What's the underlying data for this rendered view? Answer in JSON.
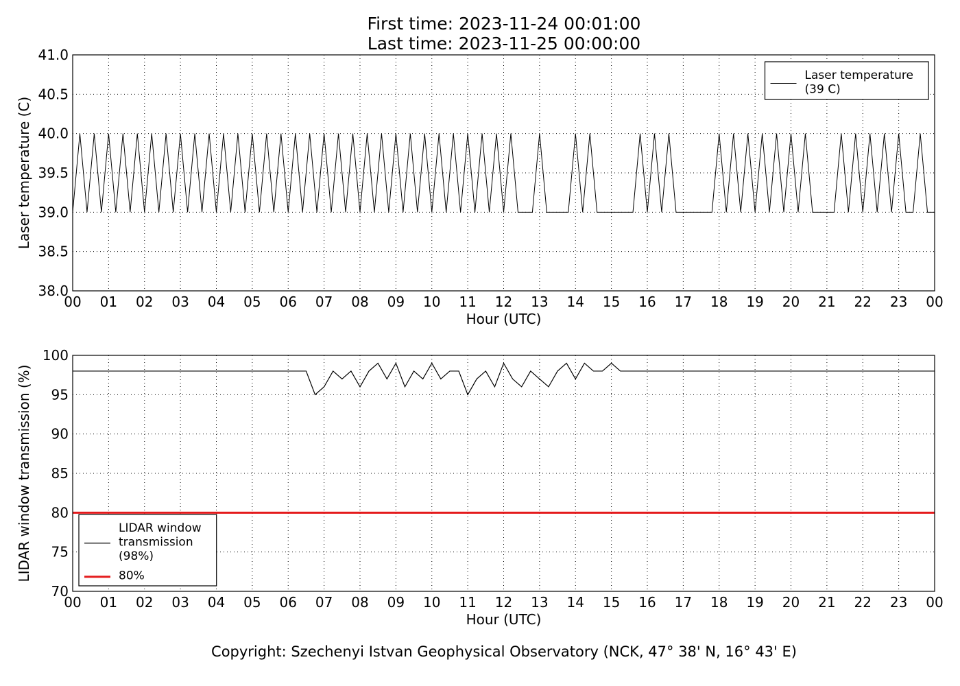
{
  "title": [
    "First time: 2023-11-24 00:01:00",
    "Last time: 2023-11-25 00:00:00"
  ],
  "footer": "Copyright: Szechenyi Istvan Geophysical Observatory (NCK, 47° 38' N, 16° 43' E)",
  "chart_data": [
    {
      "type": "line",
      "xlabel": "Hour (UTC)",
      "ylabel": "Laser temperature (C)",
      "xlim": [
        0,
        24
      ],
      "ylim": [
        38,
        41
      ],
      "grid": true,
      "legend": "upper right",
      "xticks": [
        {
          "value": 0,
          "label": "00"
        },
        {
          "value": 1,
          "label": "01"
        },
        {
          "value": 2,
          "label": "02"
        },
        {
          "value": 3,
          "label": "03"
        },
        {
          "value": 4,
          "label": "04"
        },
        {
          "value": 5,
          "label": "05"
        },
        {
          "value": 6,
          "label": "06"
        },
        {
          "value": 7,
          "label": "07"
        },
        {
          "value": 8,
          "label": "08"
        },
        {
          "value": 9,
          "label": "09"
        },
        {
          "value": 10,
          "label": "10"
        },
        {
          "value": 11,
          "label": "11"
        },
        {
          "value": 12,
          "label": "12"
        },
        {
          "value": 13,
          "label": "13"
        },
        {
          "value": 14,
          "label": "14"
        },
        {
          "value": 15,
          "label": "15"
        },
        {
          "value": 16,
          "label": "16"
        },
        {
          "value": 17,
          "label": "17"
        },
        {
          "value": 18,
          "label": "18"
        },
        {
          "value": 19,
          "label": "19"
        },
        {
          "value": 20,
          "label": "20"
        },
        {
          "value": 21,
          "label": "21"
        },
        {
          "value": 22,
          "label": "22"
        },
        {
          "value": 23,
          "label": "23"
        },
        {
          "value": 24,
          "label": "00"
        }
      ],
      "yticks": [
        {
          "value": 38,
          "label": "38.0"
        },
        38.5,
        {
          "value": 39,
          "label": "39.0"
        },
        39.5,
        {
          "value": 40,
          "label": "40.0"
        },
        40.5,
        {
          "value": 41,
          "label": "41.0"
        }
      ],
      "series": [
        {
          "name": "Laser temperature\n(39 C)",
          "color": "#000000",
          "x": [
            0,
            0.2,
            0.4,
            0.6,
            0.8,
            1,
            1.2,
            1.4,
            1.6,
            1.8,
            2,
            2.2,
            2.4,
            2.6,
            2.8,
            3,
            3.2,
            3.4,
            3.6,
            3.8,
            4,
            4.2,
            4.4,
            4.6,
            4.8,
            5,
            5.2,
            5.4,
            5.6,
            5.8,
            6,
            6.2,
            6.4,
            6.6,
            6.8,
            7,
            7.2,
            7.4,
            7.6,
            7.8,
            8,
            8.2,
            8.4,
            8.6,
            8.8,
            9,
            9.2,
            9.4,
            9.6,
            9.8,
            10,
            10.2,
            10.4,
            10.6,
            10.8,
            11,
            11.2,
            11.4,
            11.6,
            11.8,
            12,
            12.2,
            12.4,
            12.6,
            12.8,
            13,
            13.2,
            13.4,
            13.6,
            13.8,
            14,
            14.2,
            14.4,
            14.6,
            14.8,
            15,
            15.2,
            15.4,
            15.6,
            15.8,
            16,
            16.2,
            16.4,
            16.6,
            16.8,
            17,
            17.2,
            17.4,
            17.6,
            17.8,
            18,
            18.2,
            18.4,
            18.6,
            18.8,
            19,
            19.2,
            19.4,
            19.6,
            19.8,
            20,
            20.2,
            20.4,
            20.6,
            20.8,
            21,
            21.2,
            21.4,
            21.6,
            21.8,
            22,
            22.2,
            22.4,
            22.6,
            22.8,
            23,
            23.2,
            23.4,
            23.6,
            23.8,
            24
          ],
          "values": [
            39,
            40,
            39,
            40,
            39,
            40,
            39,
            40,
            39,
            40,
            39,
            40,
            39,
            40,
            39,
            40,
            39,
            40,
            39,
            40,
            39,
            40,
            39,
            40,
            39,
            40,
            39,
            40,
            39,
            40,
            39,
            40,
            39,
            40,
            39,
            40,
            39,
            40,
            39,
            40,
            39,
            40,
            39,
            40,
            39,
            40,
            39,
            40,
            39,
            40,
            39,
            40,
            39,
            40,
            39,
            40,
            39,
            40,
            39,
            40,
            39,
            40,
            39,
            39,
            39,
            40,
            39,
            39,
            39,
            39,
            40,
            39,
            40,
            39,
            39,
            39,
            39,
            39,
            39,
            40,
            39,
            40,
            39,
            40,
            39,
            39,
            39,
            39,
            39,
            39,
            40,
            39,
            40,
            39,
            40,
            39,
            40,
            39,
            40,
            39,
            40,
            39,
            40,
            39,
            39,
            39,
            39,
            40,
            39,
            40,
            39,
            40,
            39,
            40,
            39,
            40,
            39,
            39,
            40,
            39,
            39
          ]
        }
      ]
    },
    {
      "type": "line",
      "xlabel": "Hour (UTC)",
      "ylabel": "LIDAR window transmission (%)",
      "xlim": [
        0,
        24
      ],
      "ylim": [
        70,
        100
      ],
      "grid": true,
      "legend": "lower left",
      "xticks": [
        {
          "value": 0,
          "label": "00"
        },
        {
          "value": 1,
          "label": "01"
        },
        {
          "value": 2,
          "label": "02"
        },
        {
          "value": 3,
          "label": "03"
        },
        {
          "value": 4,
          "label": "04"
        },
        {
          "value": 5,
          "label": "05"
        },
        {
          "value": 6,
          "label": "06"
        },
        {
          "value": 7,
          "label": "07"
        },
        {
          "value": 8,
          "label": "08"
        },
        {
          "value": 9,
          "label": "09"
        },
        {
          "value": 10,
          "label": "10"
        },
        {
          "value": 11,
          "label": "11"
        },
        {
          "value": 12,
          "label": "12"
        },
        {
          "value": 13,
          "label": "13"
        },
        {
          "value": 14,
          "label": "14"
        },
        {
          "value": 15,
          "label": "15"
        },
        {
          "value": 16,
          "label": "16"
        },
        {
          "value": 17,
          "label": "17"
        },
        {
          "value": 18,
          "label": "18"
        },
        {
          "value": 19,
          "label": "19"
        },
        {
          "value": 20,
          "label": "20"
        },
        {
          "value": 21,
          "label": "21"
        },
        {
          "value": 22,
          "label": "22"
        },
        {
          "value": 23,
          "label": "23"
        },
        {
          "value": 24,
          "label": "00"
        }
      ],
      "yticks": [
        70,
        75,
        80,
        85,
        90,
        95,
        100
      ],
      "series": [
        {
          "name": "LIDAR window\ntransmission\n(98%)",
          "color": "#000000",
          "width": 1.2,
          "x": [
            0,
            0.25,
            0.5,
            0.75,
            1,
            1.25,
            1.5,
            1.75,
            2,
            2.25,
            2.5,
            2.75,
            3,
            3.25,
            3.5,
            3.75,
            4,
            4.25,
            4.5,
            4.75,
            5,
            5.25,
            5.5,
            5.75,
            6,
            6.25,
            6.5,
            6.75,
            7,
            7.25,
            7.5,
            7.75,
            8,
            8.25,
            8.5,
            8.75,
            9,
            9.25,
            9.5,
            9.75,
            10,
            10.25,
            10.5,
            10.75,
            11,
            11.25,
            11.5,
            11.75,
            12,
            12.25,
            12.5,
            12.75,
            13,
            13.25,
            13.5,
            13.75,
            14,
            14.25,
            14.5,
            14.75,
            15,
            15.25,
            15.5,
            15.75,
            16,
            16.25,
            16.5,
            16.75,
            17,
            17.25,
            17.5,
            17.75,
            18,
            18.25,
            18.5,
            18.75,
            19,
            19.25,
            19.5,
            19.75,
            20,
            20.25,
            20.5,
            20.75,
            21,
            21.25,
            21.5,
            21.75,
            22,
            22.25,
            22.5,
            22.75,
            23,
            23.25,
            23.5,
            23.75,
            24
          ],
          "values": [
            98,
            98,
            98,
            98,
            98,
            98,
            98,
            98,
            98,
            98,
            98,
            98,
            98,
            98,
            98,
            98,
            98,
            98,
            98,
            98,
            98,
            98,
            98,
            98,
            98,
            98,
            98,
            95,
            96,
            98,
            97,
            98,
            96,
            98,
            99,
            97,
            99,
            96,
            98,
            97,
            99,
            97,
            98,
            98,
            95,
            97,
            98,
            96,
            99,
            97,
            96,
            98,
            97,
            96,
            98,
            99,
            97,
            99,
            98,
            98,
            99,
            98,
            98,
            98,
            98,
            98,
            98,
            98,
            98,
            98,
            98,
            98,
            98,
            98,
            98,
            98,
            98,
            98,
            98,
            98,
            98,
            98,
            98,
            98,
            98,
            98,
            98,
            98,
            98,
            98,
            98,
            98,
            98,
            98,
            98,
            98,
            98
          ]
        },
        {
          "name": "80%",
          "color": "#e41a1c",
          "width": 3,
          "x": [
            0,
            24
          ],
          "values": [
            80,
            80
          ]
        }
      ]
    }
  ]
}
